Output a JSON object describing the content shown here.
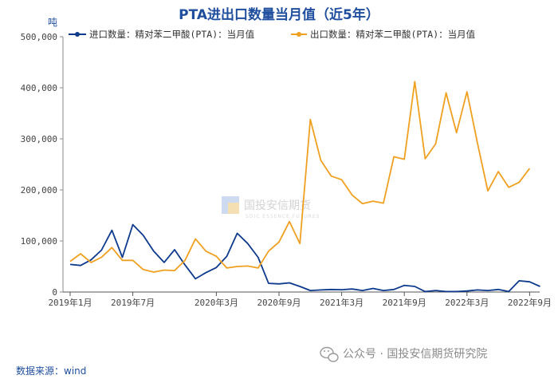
{
  "chart_data": {
    "type": "line",
    "title": "PTA进出口数量当月值（近5年）",
    "unit_label": "吨",
    "ylim": [
      0,
      500000
    ],
    "y_ticks": [
      "500,000",
      "400,000",
      "300,000",
      "200,000",
      "100,000",
      "0"
    ],
    "y_tick_values": [
      500000,
      400000,
      300000,
      200000,
      100000,
      0
    ],
    "x_tick_labels": [
      "2019年1月",
      "2019年7月",
      "2020年3月",
      "2020年9月",
      "2021年3月",
      "2021年9月",
      "2022年3月",
      "2022年9月"
    ],
    "x_tick_index": [
      0,
      6,
      14,
      20,
      26,
      32,
      38,
      44
    ],
    "legend_position": "top",
    "grid": false,
    "source": "数据来源：wind",
    "series": [
      {
        "name": "进口数量：精对苯二甲酸(PTA)：当月值",
        "color": "#0d3a8c",
        "values": [
          54000,
          52000,
          63000,
          82000,
          121000,
          68000,
          132000,
          111000,
          80000,
          58000,
          83000,
          53000,
          26000,
          38000,
          48000,
          70000,
          115000,
          95000,
          68000,
          17000,
          16000,
          18000,
          11000,
          3000,
          4000,
          5000,
          4500,
          6000,
          3000,
          7000,
          3000,
          5000,
          13000,
          11000,
          1000,
          3000,
          1000,
          1000,
          2000,
          4000,
          3000,
          5000,
          1000,
          22000,
          20000,
          11000
        ]
      },
      {
        "name": "出口数量：精对苯二甲酸(PTA)：当月值",
        "color": "#f0a020",
        "values": [
          60000,
          75000,
          58000,
          68000,
          87000,
          62000,
          62000,
          44000,
          39000,
          43000,
          42000,
          62000,
          104000,
          80000,
          70000,
          47000,
          50000,
          51000,
          47000,
          80000,
          98000,
          138000,
          95000,
          338000,
          258000,
          227000,
          220000,
          190000,
          173000,
          178000,
          174000,
          265000,
          260000,
          412000,
          261000,
          290000,
          390000,
          312000,
          392000,
          292000,
          198000,
          236000,
          205000,
          215000,
          242000
        ]
      }
    ]
  },
  "watermark": {
    "name": "国投安信期货",
    "sub": "SDIC ESSENCE FUTURES"
  },
  "footer": {
    "text": "公众号 · 国投安信期货研究院"
  }
}
